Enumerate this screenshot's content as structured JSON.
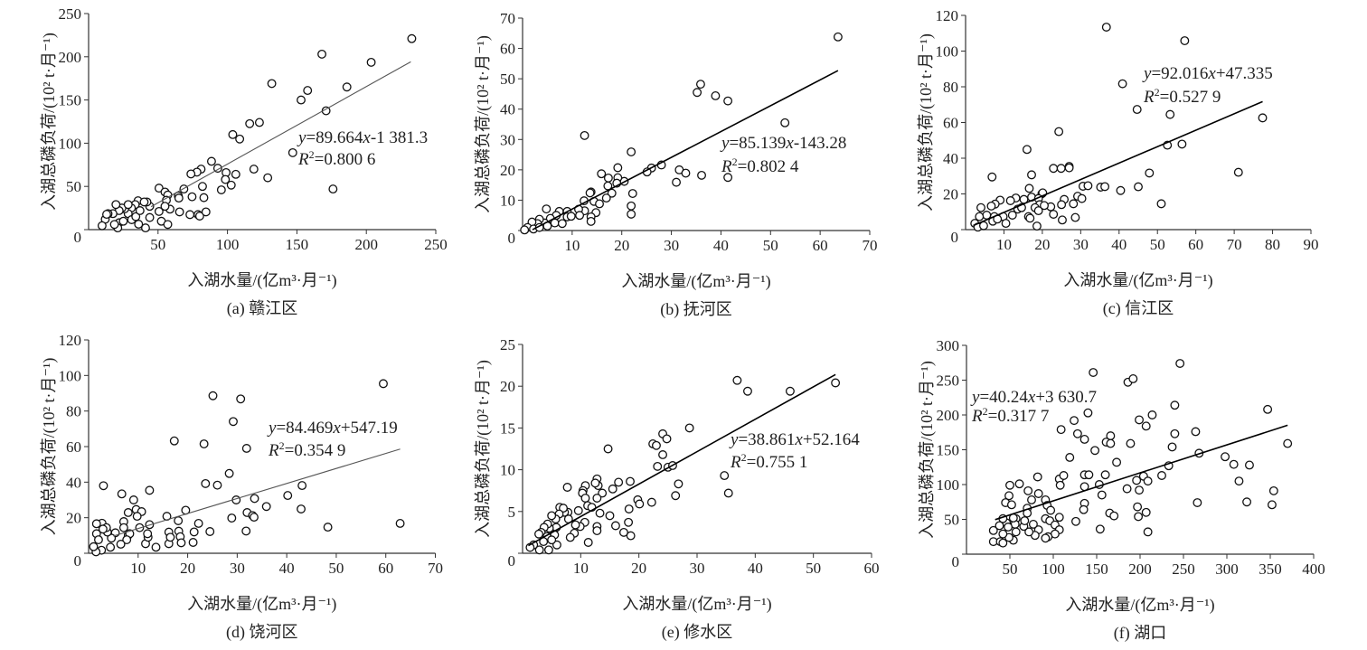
{
  "chart_data": [
    {
      "type": "scatter",
      "caption": "(a) 赣江区",
      "xlabel": "入湖水量/(亿m³·月⁻¹)",
      "ylabel": "入湖总磷负荷/(10² t·月⁻¹)",
      "xlim": [
        0,
        250
      ],
      "ylim": [
        0,
        250
      ],
      "xticks": [
        "50",
        "100",
        "150",
        "200",
        "250"
      ],
      "yticks": [
        "0",
        "50",
        "100",
        "150",
        "200",
        "250"
      ],
      "grid": false,
      "x": [
        232.7,
        168,
        203.5,
        131.9,
        157.7,
        186,
        153,
        171,
        116,
        123,
        103.8,
        108.8,
        147,
        88.5,
        93,
        119,
        99,
        106,
        81,
        78,
        73.7,
        129,
        98.5,
        102.7,
        95.6,
        176,
        82,
        68.6,
        50.7,
        55,
        57,
        56,
        64.6,
        65,
        74.5,
        83,
        65.5,
        73,
        78.8,
        80,
        84.5,
        50.7,
        52.4,
        57,
        58.6,
        55,
        44,
        44,
        41,
        36,
        42,
        35.6,
        40,
        33.6,
        30.8,
        28.5,
        26,
        24,
        22,
        19.7,
        17.5,
        14,
        12,
        9.7,
        13,
        22,
        31,
        34,
        37,
        21,
        18.6,
        25,
        28.5
      ],
      "y": [
        221,
        203,
        193.6,
        169,
        161,
        165,
        150,
        137.5,
        122.6,
        124,
        110,
        104.8,
        89,
        79,
        71,
        70,
        66,
        64,
        70,
        66.5,
        64.4,
        60,
        58,
        51.5,
        46,
        47,
        50,
        47,
        48,
        43.5,
        40,
        34,
        39,
        36.5,
        38,
        37,
        20.5,
        17.4,
        17.4,
        15.7,
        20.5,
        21,
        9.7,
        6,
        23.7,
        27,
        27,
        14,
        2,
        6.3,
        32,
        33.4,
        32,
        29,
        25,
        18.5,
        24,
        25,
        22,
        29,
        18.5,
        18.5,
        12,
        4.5,
        17.7,
        8,
        11.5,
        15,
        22,
        2,
        6,
        9.7,
        29
      ],
      "trendline": {
        "x": [
          45,
          232
        ],
        "y": [
          26.5,
          194.2
        ]
      },
      "trend_color": "#555555",
      "equation": [
        "y",
        "=89.664",
        "x",
        "-1 381.3"
      ],
      "r2": [
        "R",
        "2",
        "=0.800 6"
      ]
    },
    {
      "type": "scatter",
      "caption": "(b) 抚河区",
      "xlabel": "入湖水量/(亿m³·月⁻¹)",
      "ylabel": "入湖总磷负荷/(10² t·月⁻¹)",
      "xlim": [
        0,
        70
      ],
      "ylim": [
        0,
        70
      ],
      "xticks": [
        "10",
        "20",
        "30",
        "40",
        "50",
        "60",
        "70"
      ],
      "yticks": [
        "0",
        "10",
        "20",
        "30",
        "40",
        "50",
        "60",
        "70"
      ],
      "grid": false,
      "x": [
        63.6,
        35.9,
        35.2,
        38.9,
        41.4,
        52.9,
        12.5,
        21.9,
        19.2,
        15.9,
        17.3,
        26,
        28,
        25.1,
        31.6,
        32.9,
        36.1,
        41.4,
        31,
        20.5,
        19.2,
        19,
        17.2,
        18,
        16.9,
        22.2,
        21.9,
        21.9,
        13.8,
        13.6,
        12.4,
        14.4,
        15.5,
        14.8,
        13.8,
        13.8,
        12.5,
        11.3,
        11.5,
        9,
        9,
        9.8,
        7.4,
        6.8,
        4.8,
        5.6,
        6.5,
        4.4,
        3.4,
        3,
        1.9,
        1,
        0.4,
        8,
        5,
        2.2,
        3.4
      ],
      "y": [
        63.8,
        48.2,
        45.5,
        44.4,
        42.7,
        35.5,
        31.3,
        25.9,
        20.7,
        18.7,
        17.3,
        20.6,
        21.6,
        19.3,
        20,
        18.9,
        18.2,
        17.5,
        15.9,
        16.2,
        17.4,
        15.6,
        14.7,
        12.3,
        10.7,
        12.2,
        8.1,
        5.4,
        12.7,
        12.4,
        9.8,
        9.6,
        8.8,
        5.9,
        4.5,
        3,
        6.5,
        7,
        5,
        6.3,
        4.5,
        4.7,
        6.3,
        5,
        7.1,
        4,
        2.5,
        2.5,
        3.7,
        2.3,
        2.8,
        1,
        0.2,
        2.3,
        1.5,
        0.5,
        1
      ],
      "trendline": {
        "x": [
          2,
          63.6
        ],
        "y": [
          0.27,
          52.7
        ]
      },
      "trend_color": "#000000",
      "equation": [
        "y",
        "=85.139",
        "x",
        "-143.28"
      ],
      "r2": [
        "R",
        "2",
        "=0.802 4"
      ]
    },
    {
      "type": "scatter",
      "caption": "(c) 信江区",
      "xlabel": "入湖水量/(亿m³·月⁻¹)",
      "ylabel": "入湖总磷负荷/(10² t·月⁻¹)",
      "xlim": [
        0,
        90
      ],
      "ylim": [
        0,
        120
      ],
      "xticks": [
        "10",
        "20",
        "30",
        "40",
        "50",
        "60",
        "70",
        "80",
        "90"
      ],
      "yticks": [
        "0",
        "20",
        "40",
        "60",
        "80",
        "100",
        "120"
      ],
      "grid": false,
      "x": [
        36.7,
        57.1,
        40.9,
        44.7,
        53.3,
        77.4,
        24.3,
        52.6,
        56.4,
        16,
        47.9,
        71.1,
        6.9,
        17.2,
        22.9,
        24.9,
        27,
        27,
        30.6,
        31.9,
        35.2,
        36.3,
        40.4,
        45,
        51,
        16.6,
        19.9,
        20.1,
        17.2,
        13.1,
        15.2,
        19,
        25.7,
        29.2,
        30.3,
        28.1,
        25,
        22.2,
        22.9,
        25.2,
        28.6,
        18.6,
        16.4,
        16.8,
        19.3,
        20.5,
        18.1,
        19,
        11.7,
        9,
        7.7,
        6.7,
        4,
        13.6,
        12.2,
        9.8,
        7.5,
        5.5,
        3.6,
        2.4,
        3.2,
        4.7,
        10.5,
        7.1,
        14.6,
        8.3
      ],
      "y": [
        113.4,
        105.8,
        81.7,
        67.3,
        64.5,
        62.6,
        54.9,
        47.3,
        47.9,
        44.9,
        31.7,
        32.1,
        29.5,
        30.7,
        34.3,
        34.3,
        35.4,
        34.6,
        24.3,
        24.6,
        23.8,
        24.1,
        21.9,
        24,
        14.5,
        23.1,
        20.1,
        20.6,
        18.2,
        17.7,
        16.9,
        17.4,
        16.9,
        18.7,
        17.4,
        14.5,
        14,
        12.8,
        8.6,
        5.4,
        6.8,
        2,
        7.3,
        6.4,
        14,
        13.5,
        12.3,
        10.6,
        16.2,
        16.5,
        14.3,
        13.2,
        12.3,
        11.5,
        8.1,
        7.3,
        7.3,
        8.1,
        7.3,
        3.5,
        1.4,
        2.2,
        3.5,
        4.7,
        12.3,
        5.9
      ],
      "trendline": {
        "x": [
          2,
          77.4
        ],
        "y": [
          2.3,
          71.7
        ]
      },
      "trend_color": "#000000",
      "equation": [
        "y",
        "=92.016",
        "x",
        "+47.335"
      ],
      "r2": [
        "R",
        "2",
        "=0.527 9"
      ]
    },
    {
      "type": "scatter",
      "caption": "(d) 饶河区",
      "xlabel": "入湖水量/(亿m³·月⁻¹)",
      "ylabel": "入湖总磷负荷/(10² t·月⁻¹)",
      "xlim": [
        0,
        70
      ],
      "ylim": [
        0,
        120
      ],
      "xticks": [
        "10",
        "20",
        "30",
        "40",
        "50",
        "60",
        "70"
      ],
      "yticks": [
        "0",
        "20",
        "40",
        "60",
        "80",
        "100",
        "120"
      ],
      "grid": false,
      "x": [
        59.5,
        25.1,
        30.7,
        29.2,
        17.3,
        23.3,
        31.9,
        28.4,
        23.6,
        26,
        43.1,
        3,
        6.7,
        12.3,
        9.1,
        29.8,
        33.5,
        40.2,
        35.9,
        42.9,
        19.6,
        8,
        9.6,
        10.7,
        32,
        33.1,
        33.4,
        28.9,
        15.8,
        9.8,
        18.1,
        48.3,
        62.9,
        22.2,
        31.8,
        24.5,
        21.3,
        18.2,
        16.2,
        18.5,
        18.7,
        16.2,
        21.1,
        16.5,
        13.6,
        11.5,
        12,
        11.9,
        10.3,
        12.3,
        7.1,
        7.1,
        8,
        8.3,
        7.7,
        6.5,
        5.4,
        4.6,
        3.8,
        2.7,
        1.6,
        1.6,
        3.6,
        2.9,
        2,
        4.4,
        2.6,
        1.5,
        1
      ],
      "y": [
        95.4,
        88.6,
        86.8,
        74.1,
        63.2,
        61.5,
        59,
        44.9,
        39.2,
        38.3,
        38.1,
        38,
        33.4,
        35.4,
        30,
        30,
        30.8,
        32.5,
        26.3,
        24.9,
        24.2,
        22.9,
        24.6,
        23.4,
        22.9,
        21.2,
        20.3,
        19.8,
        20.8,
        20.8,
        18.3,
        14.7,
        16.8,
        16.8,
        12.5,
        12.2,
        12,
        12.4,
        11.9,
        9.3,
        5.9,
        5.4,
        6.1,
        9,
        3.4,
        5.4,
        9,
        11,
        14.4,
        16.1,
        17.8,
        14.4,
        10.2,
        11,
        7.6,
        5.1,
        11.5,
        8.5,
        11.9,
        16.9,
        16.6,
        11,
        14.4,
        13.6,
        7.6,
        3.4,
        1.7,
        0.8,
        3.7
      ],
      "trendline": {
        "x": [
          5,
          62.9
        ],
        "y": [
          9.7,
          58.6
        ]
      },
      "trend_color": "#555555",
      "equation": [
        "y",
        "=84.469",
        "x",
        "+547.19"
      ],
      "r2": [
        "R",
        "2",
        "=0.354 9"
      ]
    },
    {
      "type": "scatter",
      "caption": "(e) 修水区",
      "xlabel": "入湖水量/(亿m³·月⁻¹)",
      "ylabel": "入湖总磷负荷/(10² t·月⁻¹)",
      "xlim": [
        0,
        60
      ],
      "ylim": [
        0,
        25
      ],
      "xticks": [
        "10",
        "20",
        "30",
        "40",
        "50",
        "60"
      ],
      "yticks": [
        "0",
        "5",
        "10",
        "15",
        "20",
        "25"
      ],
      "grid": false,
      "x": [
        36.9,
        38.7,
        46,
        53.8,
        28.7,
        14.7,
        24.1,
        24.8,
        22.4,
        23,
        24.1,
        23.2,
        25,
        25.8,
        34.7,
        35.4,
        26.8,
        26.3,
        22.2,
        19.8,
        20.1,
        18.5,
        16.5,
        15.5,
        13.7,
        12.8,
        13,
        12.5,
        12.8,
        10.8,
        10.4,
        10.3,
        10.8,
        7.7,
        11.2,
        11.9,
        13.3,
        15,
        18.3,
        18.2,
        16,
        17.4,
        18.6,
        12.8,
        12.8,
        11.3,
        9.6,
        10.7,
        9.9,
        9.1,
        8.9,
        8.2,
        7.8,
        7.9,
        7.2,
        6.4,
        7,
        6.3,
        5.7,
        5,
        5.8,
        5.5,
        5.9,
        4.6,
        4.3,
        3.7,
        3.2,
        2.8,
        4.2,
        3.6,
        2.9,
        4.5,
        1.9,
        1.3,
        5
      ],
      "y": [
        20.7,
        19.4,
        19.4,
        20.4,
        15,
        12.5,
        14.3,
        13.7,
        13.1,
        12.9,
        11.8,
        10.4,
        10.3,
        10.5,
        9.3,
        7.2,
        8.3,
        6.9,
        6.1,
        6.4,
        5.9,
        8.6,
        8.5,
        7.7,
        7.2,
        8.9,
        8.1,
        8.4,
        6.6,
        8.1,
        7.5,
        7.2,
        6.6,
        7.9,
        5.7,
        5.5,
        4.8,
        4.5,
        5.3,
        3.7,
        3.3,
        2.5,
        2.1,
        3.2,
        2.7,
        1.3,
        5.1,
        3.7,
        3.2,
        3.4,
        2.4,
        1.9,
        4.9,
        4.1,
        4.9,
        5.5,
        5.4,
        4.7,
        4.1,
        4.5,
        3.1,
        2.2,
        1,
        3,
        3.5,
        3.1,
        2.5,
        2.3,
        2,
        1.4,
        0.4,
        0.4,
        1,
        0.7,
        1.6
      ],
      "trendline": {
        "x": [
          1,
          53.8
        ],
        "y": [
          0.91,
          21.4
        ]
      },
      "trend_color": "#000000",
      "equation": [
        "y",
        "=38.861",
        "x",
        "+52.164"
      ],
      "r2": [
        "R",
        "2",
        "=0.755 1"
      ]
    },
    {
      "type": "scatter",
      "caption": "(f) 湖口",
      "xlabel": "入湖水量/(亿m³·月⁻¹)",
      "ylabel": "入湖总磷负荷/(10² t·月⁻¹)",
      "xlim": [
        0,
        400
      ],
      "ylim": [
        0,
        300
      ],
      "xticks": [
        "50",
        "100",
        "150",
        "200",
        "250",
        "300",
        "350",
        "400"
      ],
      "yticks": [
        "0",
        "50",
        "100",
        "150",
        "200",
        "250",
        "300"
      ],
      "grid": false,
      "x": [
        246,
        146,
        186,
        192,
        347,
        240,
        140,
        214,
        124,
        199,
        207,
        109,
        128,
        240,
        264,
        166,
        136,
        161,
        166,
        189,
        370,
        148,
        237,
        268,
        119,
        298,
        173,
        308,
        326,
        233,
        225,
        136,
        141,
        160,
        204,
        107,
        112,
        196,
        209,
        314,
        354,
        153,
        108,
        136,
        185,
        199,
        156,
        50,
        61,
        49,
        71,
        45,
        52,
        75,
        83,
        82,
        91,
        93,
        97,
        70,
        70,
        266,
        323,
        352,
        197,
        136,
        135,
        165,
        170,
        198,
        207,
        126,
        154,
        209,
        107,
        91,
        96,
        102,
        107,
        102,
        94,
        91,
        83,
        79,
        77,
        72,
        66,
        67,
        57,
        56,
        54,
        57,
        54,
        49,
        46,
        48,
        42,
        42,
        38,
        31,
        31,
        39,
        42
      ],
      "y": [
        274,
        261,
        247,
        252,
        208,
        214,
        203,
        200,
        192,
        193,
        184,
        179,
        173,
        173,
        176,
        170,
        165,
        161,
        159,
        159,
        159,
        149,
        154,
        145,
        139,
        140,
        132,
        129,
        128,
        127,
        113,
        114,
        114,
        114,
        112,
        108,
        113,
        106,
        105,
        105,
        91,
        100,
        99,
        97,
        94,
        92,
        85,
        99,
        101,
        84,
        91,
        74,
        71,
        78,
        87,
        111,
        78,
        70,
        63,
        66,
        59,
        74,
        75,
        71,
        68,
        73,
        64,
        59,
        55,
        54,
        60,
        47,
        36,
        32,
        53,
        51,
        48,
        42,
        35,
        29,
        25,
        23,
        35,
        27,
        43,
        32,
        40,
        48,
        51,
        43,
        52,
        32,
        20,
        24,
        45,
        39,
        51,
        29,
        41,
        34,
        18,
        18,
        16
      ],
      "trendline": {
        "x": [
          33,
          370
        ],
        "y": [
          49.6,
          185.2
        ]
      },
      "trend_color": "#000000",
      "equation": [
        "y",
        "=40.24",
        "x",
        "+3 630.7"
      ],
      "r2": [
        "R",
        "2",
        "=0.317 7"
      ]
    }
  ]
}
